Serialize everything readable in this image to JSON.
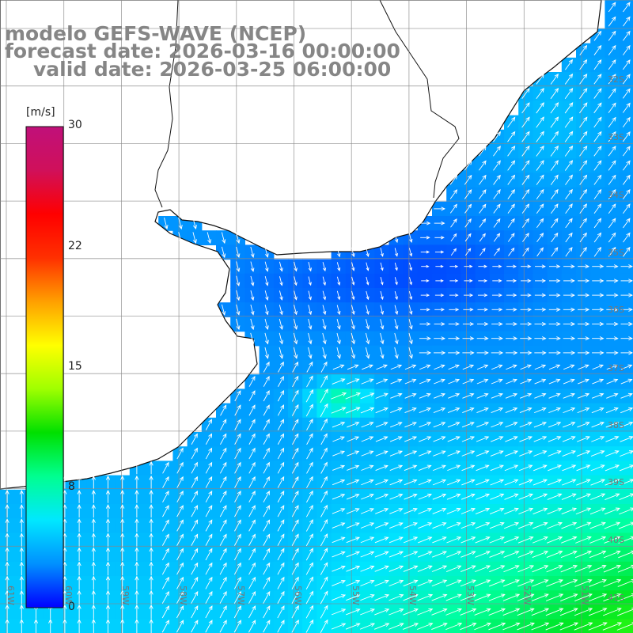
{
  "title": {
    "line1": "modelo GEFS-WAVE (NCEP)",
    "line2": "forecast date: 2026-03-16 00:00:00",
    "line3": "valid date: 2026-03-25 06:00:00"
  },
  "colorbar": {
    "unit": "[m/s]",
    "ticks": [
      "30",
      "22",
      "15",
      "8",
      "0"
    ],
    "tick_values": [
      30,
      22,
      15,
      8,
      0
    ],
    "colors": [
      "#0000ff",
      "#0090ff",
      "#00e8ff",
      "#00ff90",
      "#00e000",
      "#a0ff00",
      "#ffff00",
      "#ffa000",
      "#ff3000",
      "#ff0000",
      "#d0105a",
      "#c0107a"
    ]
  },
  "lat_labels": [
    "32S",
    "33S",
    "34S",
    "35S",
    "36S",
    "37S",
    "38S",
    "39S",
    "40S",
    "41S"
  ],
  "lon_labels": [
    "61W",
    "60W",
    "59W",
    "58W",
    "57W",
    "56W",
    "55W",
    "54W",
    "53W",
    "52W",
    "51W"
  ],
  "map_data": {
    "variable": "wind speed and direction",
    "units": "m/s",
    "field_description": "Ocean wind field over the Rio de la Plata and southwest Atlantic",
    "scale_min": 0,
    "scale_max": 30
  }
}
